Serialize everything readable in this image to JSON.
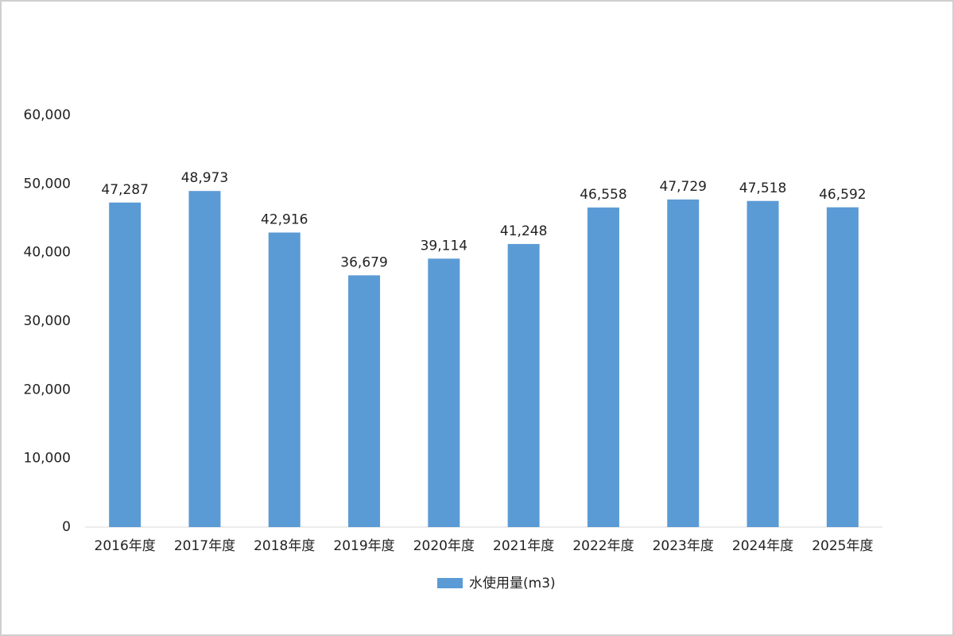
{
  "chart_data": {
    "type": "bar",
    "categories": [
      "2016年度",
      "2017年度",
      "2018年度",
      "2019年度",
      "2020年度",
      "2021年度",
      "2022年度",
      "2023年度",
      "2024年度",
      "2025年度"
    ],
    "series": [
      {
        "name": "水使用量(m3)",
        "color": "#5b9bd5",
        "values": [
          47287,
          48973,
          42916,
          36679,
          39114,
          41248,
          46558,
          47729,
          47518,
          46592
        ],
        "value_labels": [
          "47,287",
          "48,973",
          "42,916",
          "36,679",
          "39,114",
          "41,248",
          "46,558",
          "47,729",
          "47,518",
          "46,592"
        ]
      }
    ],
    "ylim": [
      0,
      60000
    ],
    "yticks": [
      {
        "value": 0,
        "label": "0"
      },
      {
        "value": 10000,
        "label": "10,000"
      },
      {
        "value": 20000,
        "label": "20,000"
      },
      {
        "value": 30000,
        "label": "30,000"
      },
      {
        "value": 40000,
        "label": "40,000"
      },
      {
        "value": 50000,
        "label": "50,000"
      },
      {
        "value": 60000,
        "label": "60,000"
      }
    ],
    "grid": false,
    "legend": "bottom"
  }
}
